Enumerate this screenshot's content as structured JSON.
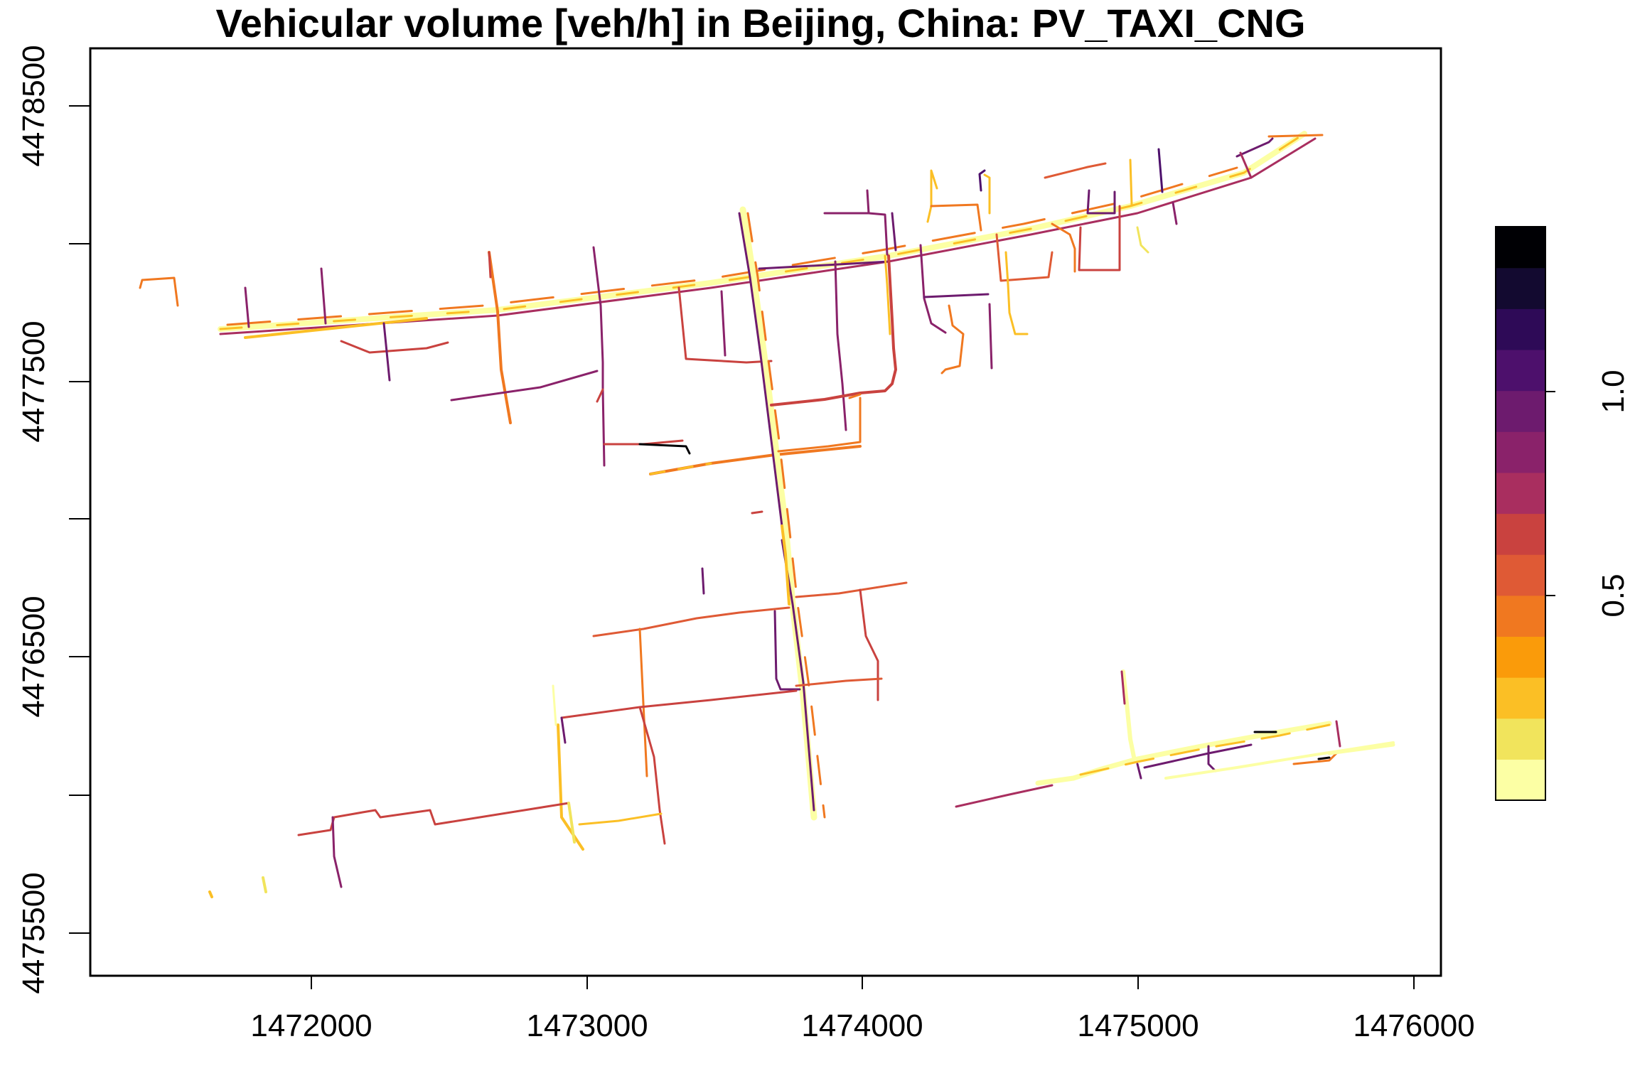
{
  "map": {
    "title": "Vehicular volume [veh/h] in Beijing, China: PV_TAXI_CNG",
    "x_axis": {
      "ticks": [
        "1472000",
        "1473000",
        "1474000",
        "1475000",
        "1476000"
      ]
    },
    "y_axis": {
      "ticks": [
        "4475500",
        "4476500",
        "4477500",
        "4478500"
      ]
    },
    "legend": {
      "ticks": [
        "0.5",
        "1.0"
      ],
      "colors": [
        "#FCFFA4",
        "#F1E45C",
        "#FBBF25",
        "#FA9B0A",
        "#F07820",
        "#DF5A35",
        "#C9423F",
        "#A92E5F",
        "#8A226A",
        "#6D1B6E",
        "#4D106C",
        "#2E0A57",
        "#130A30",
        "#000004"
      ]
    }
  }
}
